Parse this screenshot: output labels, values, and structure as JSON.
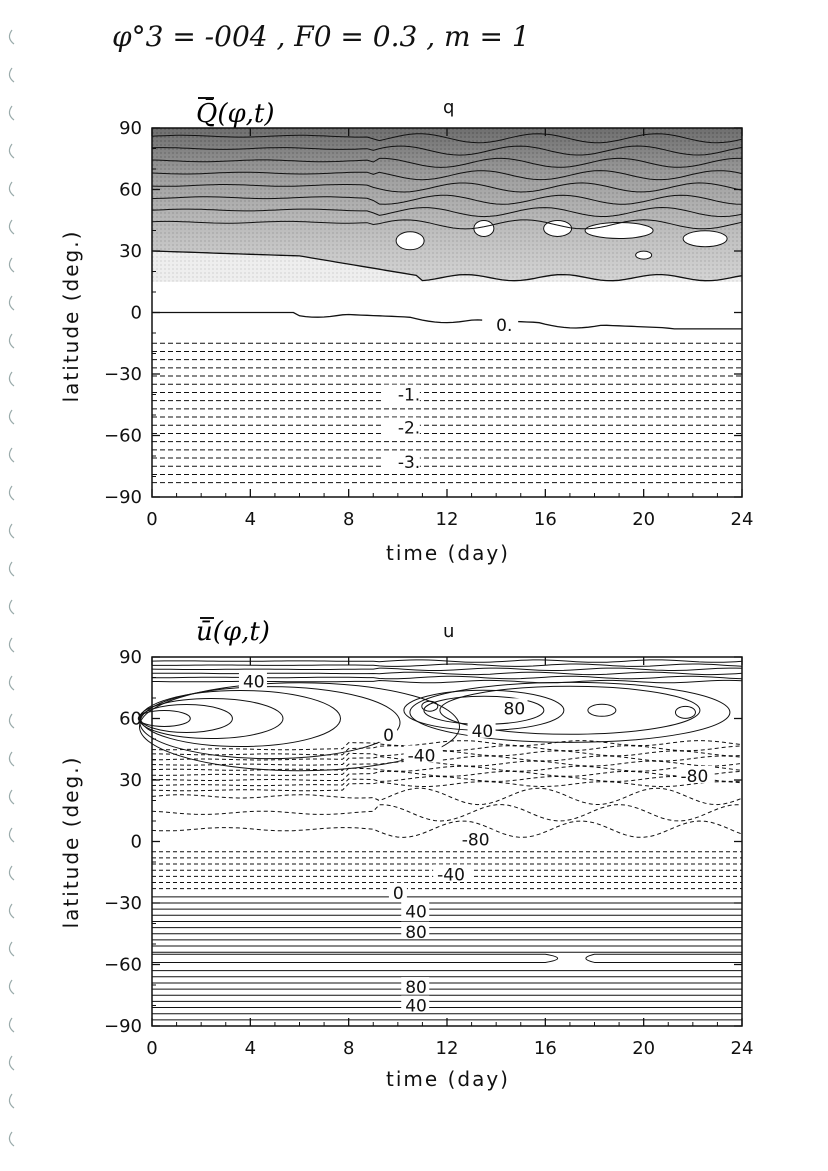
{
  "header": {
    "text": "φ°3 = -004 ,  F0 = 0.3 ,  m = 1"
  },
  "chart_data": [
    {
      "type": "contour",
      "title": "Q̄(φ,t)",
      "subtitle": "q",
      "xlabel": "time (day)",
      "ylabel": "latitude (deg.)",
      "xlim": [
        0,
        24
      ],
      "ylim": [
        -90,
        90
      ],
      "xticks": [
        0,
        4,
        8,
        12,
        16,
        20,
        24
      ],
      "yticks": [
        -90,
        -60,
        -30,
        0,
        30,
        60,
        90
      ],
      "shading": "shaded for positive values, darker toward 90",
      "contour_labels": [
        {
          "text": "0.",
          "x": 14,
          "y": -7
        },
        {
          "text": "-1.",
          "x": 10,
          "y": -41
        },
        {
          "text": "-2.",
          "x": 10,
          "y": -57
        },
        {
          "text": "-3.",
          "x": 10,
          "y": -74
        }
      ]
    },
    {
      "type": "contour",
      "title": "ū(φ,t)",
      "subtitle": "u",
      "xlabel": "time (day)",
      "ylabel": "latitude (deg.)",
      "xlim": [
        0,
        24
      ],
      "ylim": [
        -90,
        90
      ],
      "xticks": [
        0,
        4,
        8,
        12,
        16,
        20,
        24
      ],
      "yticks": [
        -90,
        -60,
        -30,
        0,
        30,
        60,
        90
      ],
      "contour_labels": [
        {
          "text": "40",
          "x": 3.7,
          "y": 77
        },
        {
          "text": "80",
          "x": 14.3,
          "y": 64
        },
        {
          "text": "40",
          "x": 13,
          "y": 53
        },
        {
          "text": "0",
          "x": 9.4,
          "y": 51
        },
        {
          "text": "-40",
          "x": 10.4,
          "y": 41
        },
        {
          "text": "-80",
          "x": 21.5,
          "y": 31
        },
        {
          "text": "-80",
          "x": 12.6,
          "y": 0
        },
        {
          "text": "-40",
          "x": 11.6,
          "y": -17
        },
        {
          "text": "0",
          "x": 9.8,
          "y": -26
        },
        {
          "text": "40",
          "x": 10.3,
          "y": -35
        },
        {
          "text": "80",
          "x": 10.3,
          "y": -45
        },
        {
          "text": "80",
          "x": 10.3,
          "y": -72
        },
        {
          "text": "40",
          "x": 10.3,
          "y": -81
        }
      ]
    }
  ]
}
